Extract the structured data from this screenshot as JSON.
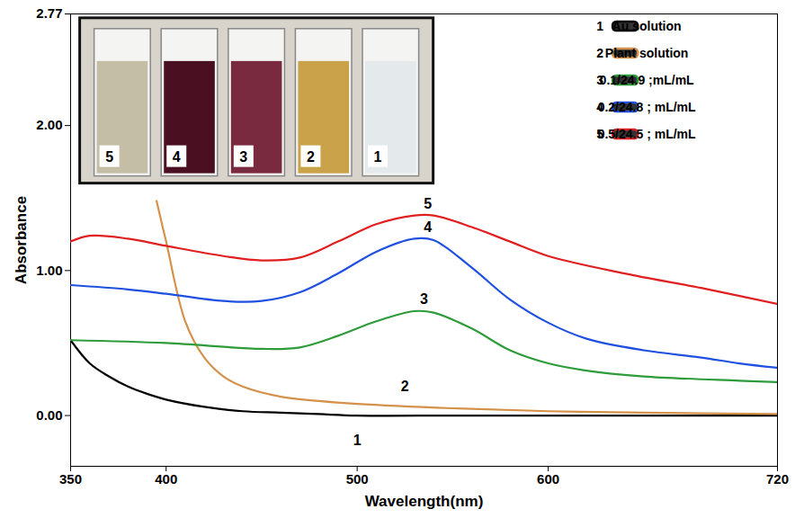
{
  "chart_data": {
    "type": "line",
    "x_label": "Wavelength(nm)",
    "y_label": "Absorbance",
    "xlim": [
      350,
      720
    ],
    "xticks": [
      350,
      400,
      500,
      600,
      720
    ],
    "ylim": [
      -0.35,
      2.77
    ],
    "yticks": [
      {
        "value": 0,
        "label": "0.00"
      },
      {
        "value": 1,
        "label": "1.00"
      },
      {
        "value": 2,
        "label": "2.00"
      },
      {
        "value": 2.77,
        "label": "2.77"
      }
    ],
    "grid": false,
    "legend": "top-right",
    "series": [
      {
        "name": "Au solution",
        "label": "1",
        "color": "#000000",
        "solution_color": "#e4eaec",
        "x": [
          350,
          360,
          370,
          380,
          390,
          400,
          420,
          440,
          460,
          480,
          500,
          550,
          600,
          650,
          720
        ],
        "values": [
          0.52,
          0.36,
          0.27,
          0.2,
          0.15,
          0.11,
          0.06,
          0.03,
          0.02,
          0.01,
          0.0,
          0.0,
          0.0,
          0.0,
          0.0
        ]
      },
      {
        "name": "Plant solution",
        "label": "2",
        "color": "#d4914a",
        "solution_color": "#c9a24a",
        "x": [
          395,
          400,
          410,
          420,
          430,
          440,
          460,
          480,
          500,
          550,
          600,
          650,
          720
        ],
        "values": [
          1.48,
          1.2,
          0.65,
          0.4,
          0.27,
          0.2,
          0.13,
          0.1,
          0.08,
          0.05,
          0.03,
          0.02,
          0.01
        ]
      },
      {
        "name": "0.1/24.9 ;mL/mL",
        "label": "3",
        "color": "#2e9c3a",
        "solution_color": "#7a2a3e",
        "x": [
          350,
          400,
          450,
          470,
          490,
          510,
          530,
          540,
          560,
          580,
          600,
          620,
          650,
          700,
          720
        ],
        "values": [
          0.52,
          0.5,
          0.46,
          0.47,
          0.55,
          0.65,
          0.72,
          0.71,
          0.6,
          0.45,
          0.36,
          0.31,
          0.27,
          0.24,
          0.23
        ]
      },
      {
        "name": "0.2/24.8 ; mL/mL",
        "label": "4",
        "color": "#2050e0",
        "solution_color": "#4a1022",
        "x": [
          350,
          380,
          400,
          430,
          450,
          470,
          490,
          510,
          530,
          540,
          560,
          580,
          600,
          620,
          650,
          680,
          700,
          720
        ],
        "values": [
          0.9,
          0.87,
          0.84,
          0.79,
          0.79,
          0.85,
          0.98,
          1.13,
          1.22,
          1.21,
          1.02,
          0.8,
          0.64,
          0.53,
          0.45,
          0.4,
          0.36,
          0.33
        ]
      },
      {
        "name": "0.5/24.5 ; mL/mL",
        "label": "5",
        "color": "#e02020",
        "solution_color": "#c4bea6",
        "x": [
          350,
          360,
          380,
          400,
          430,
          450,
          470,
          490,
          510,
          530,
          540,
          560,
          580,
          600,
          640,
          680,
          720
        ],
        "values": [
          1.2,
          1.24,
          1.22,
          1.17,
          1.1,
          1.07,
          1.09,
          1.2,
          1.32,
          1.38,
          1.38,
          1.3,
          1.2,
          1.1,
          0.98,
          0.88,
          0.77
        ]
      }
    ],
    "annotations": [
      {
        "text": "5",
        "x": 537,
        "y": 1.46
      },
      {
        "text": "4",
        "x": 537,
        "y": 1.3
      },
      {
        "text": "3",
        "x": 535,
        "y": 0.8
      },
      {
        "text": "2",
        "x": 525,
        "y": 0.2
      },
      {
        "text": "1",
        "x": 500,
        "y": -0.17
      }
    ]
  }
}
